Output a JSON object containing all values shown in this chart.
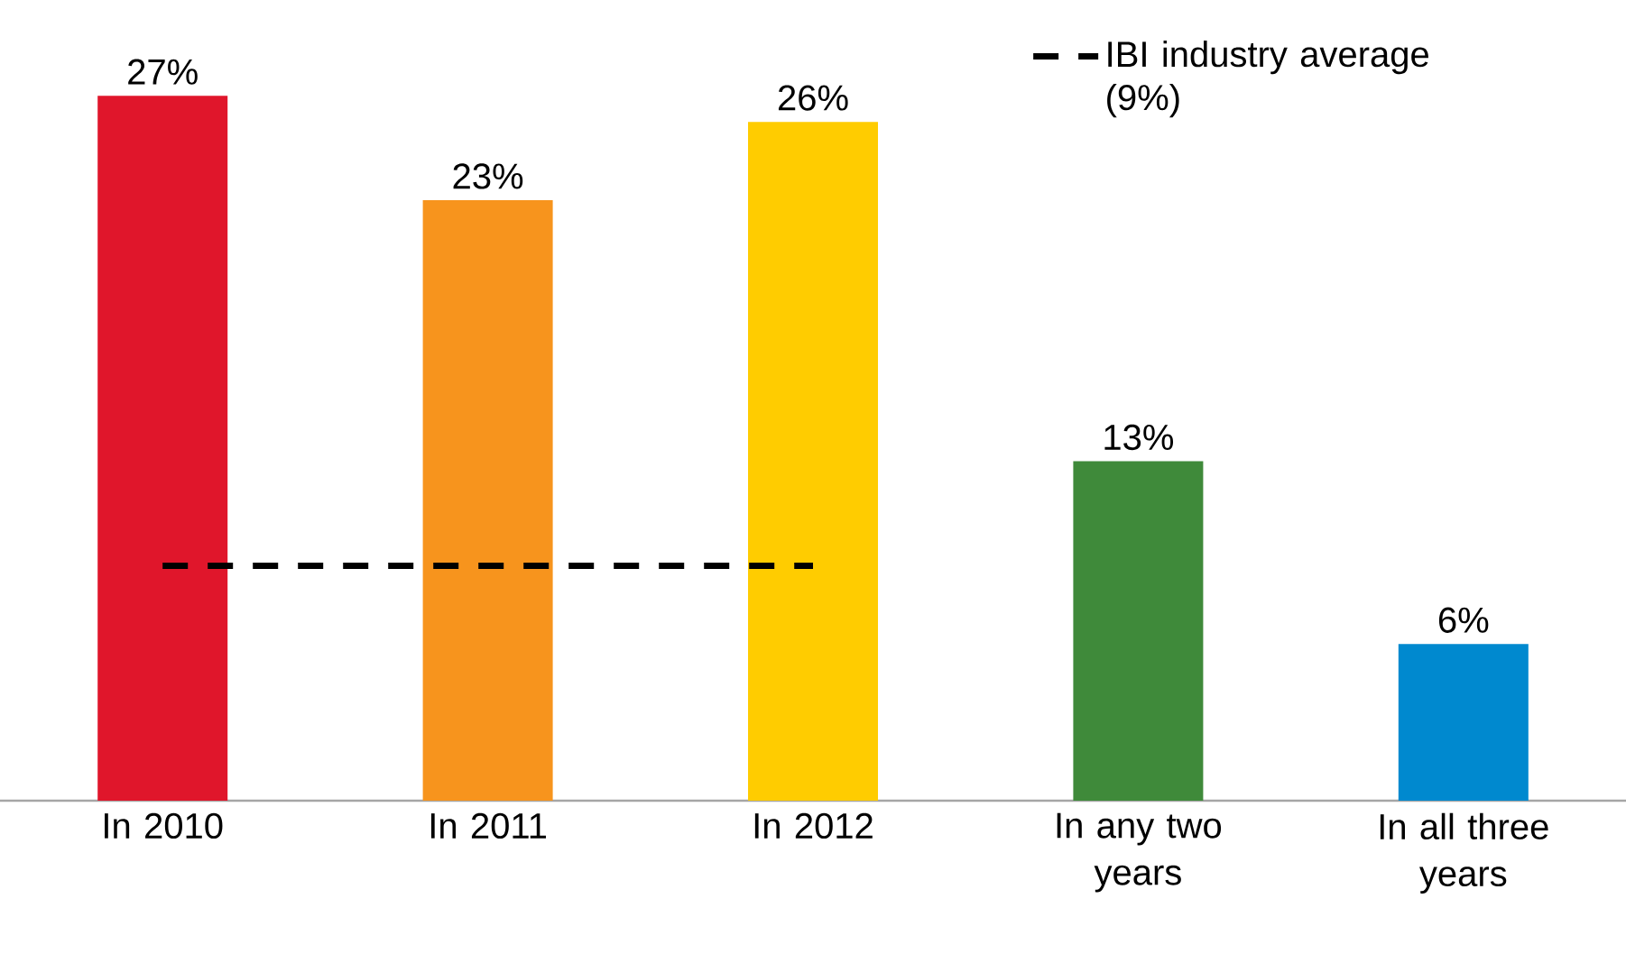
{
  "chart_data": {
    "type": "bar",
    "categories": [
      "In 2010",
      "In 2011",
      "In 2012",
      "In any two years",
      "In all three years"
    ],
    "values": [
      27,
      23,
      26,
      13,
      6
    ],
    "colors": [
      "#e0162b",
      "#f7941d",
      "#ffcc00",
      "#3f8a3a",
      "#0089cf"
    ],
    "value_labels": [
      "27%",
      "23%",
      "26%",
      "13%",
      "6%"
    ],
    "ref_lines": [
      {
        "axis": "y",
        "value": 9,
        "label": "IBI industry average (9%)",
        "color": "#000000",
        "line_style": "dashed"
      }
    ],
    "legend": "top right",
    "tick_labels": "x"
  }
}
